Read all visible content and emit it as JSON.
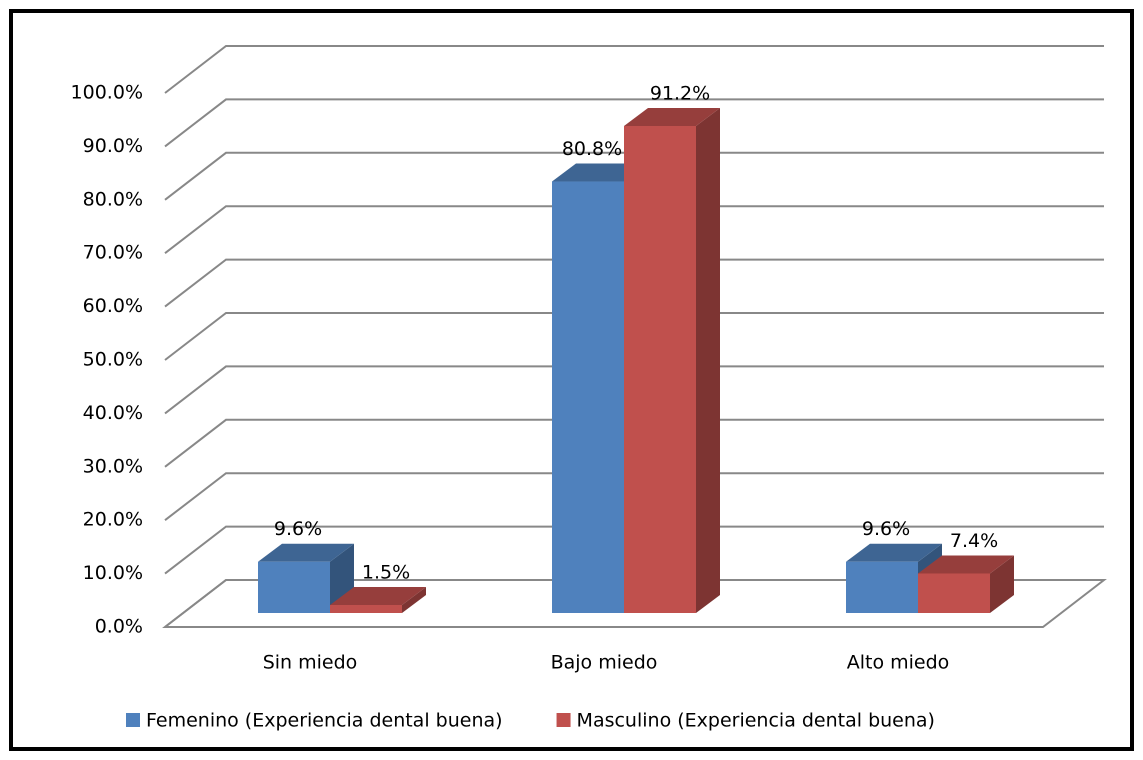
{
  "chart_data": {
    "type": "bar3d",
    "categories": [
      "Sin miedo",
      "Bajo miedo",
      "Alto miedo"
    ],
    "series": [
      {
        "name": "Femenino (Experiencia dental buena)",
        "color": "#4f81bd",
        "values": [
          9.6,
          80.8,
          9.6
        ],
        "value_labels": [
          "9.6%",
          "80.8%",
          "9.6%"
        ]
      },
      {
        "name": "Masculino (Experiencia dental buena)",
        "color": "#c0504d",
        "values": [
          1.5,
          91.2,
          7.4
        ],
        "value_labels": [
          "1.5%",
          "91.2%",
          "7.4%"
        ]
      }
    ],
    "ylim": [
      0,
      100
    ],
    "yticks": [
      {
        "value": 0,
        "label": "0.0%"
      },
      {
        "value": 10,
        "label": "10.0%"
      },
      {
        "value": 20,
        "label": "20.0%"
      },
      {
        "value": 30,
        "label": "30.0%"
      },
      {
        "value": 40,
        "label": "40.0%"
      },
      {
        "value": 50,
        "label": "50.0%"
      },
      {
        "value": 60,
        "label": "60.0%"
      },
      {
        "value": 70,
        "label": "70.0%"
      },
      {
        "value": 80,
        "label": "80.0%"
      },
      {
        "value": 90,
        "label": "90.0%"
      },
      {
        "value": 100,
        "label": "100.0%"
      }
    ],
    "grid": true,
    "legend": "bottom"
  }
}
